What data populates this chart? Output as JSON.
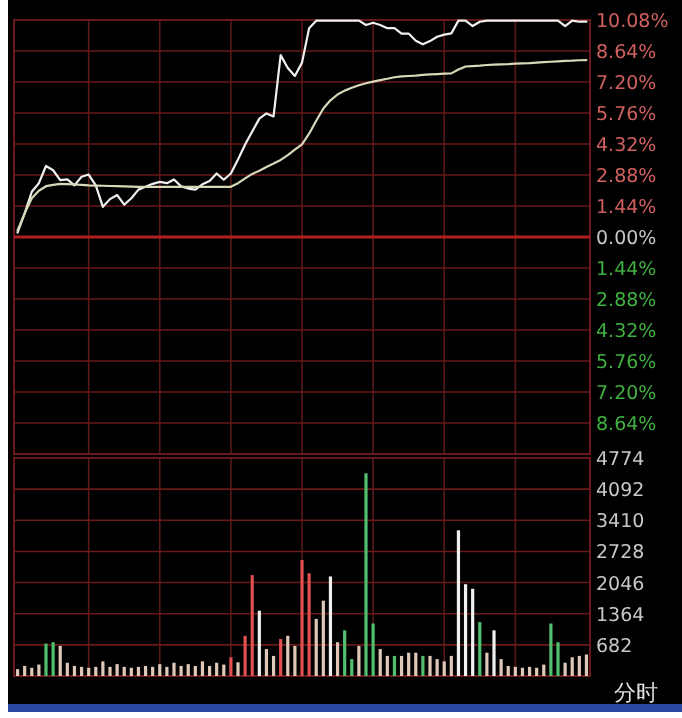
{
  "chart_data": [
    {
      "type": "line",
      "categories": [
        null,
        null,
        null,
        null,
        null,
        null,
        null,
        null,
        null,
        null,
        null,
        null,
        null,
        null,
        null,
        null,
        null,
        null,
        null,
        null,
        null,
        null,
        null,
        null,
        null,
        null,
        null,
        null,
        null,
        null,
        null,
        null,
        null,
        null,
        null,
        null,
        null,
        null,
        null,
        null,
        null,
        null,
        null,
        null,
        null,
        null,
        null,
        null,
        null,
        null,
        null,
        null,
        null,
        null,
        null,
        null,
        null,
        null,
        null,
        null,
        null,
        null,
        null,
        null,
        null,
        null,
        null,
        null,
        null,
        null,
        null,
        null,
        null,
        null,
        null,
        null,
        null,
        null,
        null,
        null,
        null
      ],
      "series": [
        {
          "color": "#f0f0f0",
          "values": [
            0.2,
            1.1,
            2.1,
            2.5,
            3.3,
            3.1,
            2.64,
            2.68,
            2.4,
            2.8,
            2.9,
            2.4,
            1.4,
            1.76,
            1.95,
            1.5,
            1.8,
            2.2,
            2.33,
            2.47,
            2.56,
            2.5,
            2.67,
            2.35,
            2.25,
            2.2,
            2.45,
            2.6,
            2.95,
            2.66,
            2.95,
            3.6,
            4.3,
            4.9,
            5.5,
            5.74,
            5.6,
            8.45,
            7.85,
            7.48,
            8.1,
            9.7,
            10.05,
            10.05,
            10.05,
            10.05,
            10.05,
            10.05,
            10.05,
            9.85,
            9.95,
            9.85,
            9.7,
            9.7,
            9.45,
            9.45,
            9.12,
            8.95,
            9.1,
            9.3,
            9.4,
            9.46,
            10.05,
            10.05,
            9.8,
            10.0,
            10.05,
            10.05,
            10.05,
            10.05,
            10.05,
            10.05,
            10.05,
            10.05,
            10.05,
            10.05,
            10.05,
            9.8,
            10.05,
            10.0,
            10.0
          ]
        },
        {
          "color": "#d8d8b8",
          "values": [
            0.3,
            1.1,
            1.8,
            2.15,
            2.36,
            2.42,
            2.47,
            2.46,
            2.44,
            2.42,
            2.4,
            2.39,
            2.38,
            2.37,
            2.36,
            2.35,
            2.34,
            2.33,
            2.33,
            2.33,
            2.33,
            2.33,
            2.33,
            2.33,
            2.33,
            2.33,
            2.33,
            2.33,
            2.33,
            2.33,
            2.33,
            2.5,
            2.72,
            2.93,
            3.08,
            3.25,
            3.41,
            3.58,
            3.8,
            4.06,
            4.3,
            4.8,
            5.4,
            5.97,
            6.35,
            6.62,
            6.8,
            6.93,
            7.05,
            7.14,
            7.22,
            7.29,
            7.35,
            7.42,
            7.46,
            7.48,
            7.5,
            7.53,
            7.55,
            7.57,
            7.59,
            7.6,
            7.78,
            7.92,
            7.94,
            7.96,
            7.99,
            8.01,
            8.02,
            8.03,
            8.05,
            8.07,
            8.08,
            8.1,
            8.12,
            8.14,
            8.16,
            8.18,
            8.19,
            8.21,
            8.22
          ]
        }
      ],
      "ylim": [
        -10.08,
        10.08
      ],
      "yticks": [
        {
          "value": 10.08,
          "label": "10.08%"
        },
        {
          "value": 8.64,
          "label": "8.64%"
        },
        {
          "value": 7.2,
          "label": "7.20%"
        },
        {
          "value": 5.76,
          "label": "5.76%"
        },
        {
          "value": 4.32,
          "label": "4.32%"
        },
        {
          "value": 2.88,
          "label": "2.88%"
        },
        {
          "value": 1.44,
          "label": "1.44%"
        },
        {
          "value": 0,
          "label": "0.00%"
        },
        {
          "value": -1.44,
          "label": "1.44%"
        },
        {
          "value": -2.88,
          "label": "2.88%"
        },
        {
          "value": -4.32,
          "label": "4.32%"
        },
        {
          "value": -5.76,
          "label": "5.76%"
        },
        {
          "value": -7.2,
          "label": "7.20%"
        },
        {
          "value": -8.64,
          "label": "8.64%"
        }
      ],
      "grid": true,
      "ref_lines": [
        {
          "axis": "y",
          "value": 0,
          "color": "#b02020"
        }
      ]
    },
    {
      "type": "bar",
      "categories": [
        null,
        null,
        null,
        null,
        null,
        null,
        null,
        null,
        null,
        null,
        null,
        null,
        null,
        null,
        null,
        null,
        null,
        null,
        null,
        null,
        null,
        null,
        null,
        null,
        null,
        null,
        null,
        null,
        null,
        null,
        null,
        null,
        null,
        null,
        null,
        null,
        null,
        null,
        null,
        null,
        null,
        null,
        null,
        null,
        null,
        null,
        null,
        null,
        null,
        null,
        null,
        null,
        null,
        null,
        null,
        null,
        null,
        null,
        null,
        null,
        null,
        null,
        null,
        null,
        null,
        null,
        null,
        null,
        null,
        null,
        null,
        null,
        null,
        null,
        null,
        null,
        null,
        null,
        null,
        null,
        null
      ],
      "values": [
        150,
        220,
        180,
        250,
        710,
        740,
        660,
        290,
        220,
        200,
        180,
        200,
        320,
        200,
        260,
        200,
        180,
        200,
        220,
        200,
        260,
        200,
        290,
        220,
        260,
        220,
        320,
        220,
        290,
        250,
        410,
        300,
        880,
        2210,
        1430,
        590,
        440,
        810,
        880,
        660,
        2540,
        2250,
        1250,
        1650,
        2180,
        740,
        1000,
        370,
        660,
        4440,
        1150,
        590,
        440,
        440,
        440,
        510,
        510,
        440,
        440,
        370,
        320,
        440,
        3190,
        2010,
        1910,
        1180,
        510,
        1000,
        370,
        220,
        200,
        180,
        200,
        180,
        250,
        1150,
        740,
        290,
        410,
        440,
        470
      ],
      "colors": [
        "#e0c8b8",
        "#e0c8b8",
        "#e0c8b8",
        "#e0c8b8",
        "#50c070",
        "#50c070",
        "#e0c8b8",
        "#e0c8b8",
        "#e0c8b8",
        "#e0c8b8",
        "#e0c8b8",
        "#e0c8b8",
        "#e0c8b8",
        "#e0c8b8",
        "#e0c8b8",
        "#e0c8b8",
        "#e0c8b8",
        "#e0c8b8",
        "#e0c8b8",
        "#e0c8b8",
        "#e0c8b8",
        "#e0c8b8",
        "#e0c8b8",
        "#e0c8b8",
        "#e0c8b8",
        "#e0c8b8",
        "#e0c8b8",
        "#e0c8b8",
        "#e0c8b8",
        "#e0c8b8",
        "#e05050",
        "#e0c8b8",
        "#e05050",
        "#e05050",
        "#f0f0f0",
        "#e0c8b8",
        "#e0c8b8",
        "#e05050",
        "#e0c8b8",
        "#e0c8b8",
        "#e05050",
        "#e05050",
        "#e0c8b8",
        "#e0c8b8",
        "#f0f0f0",
        "#e0c8b8",
        "#50c070",
        "#50c070",
        "#e0c8b8",
        "#50c070",
        "#50c070",
        "#e0c8b8",
        "#e0c8b8",
        "#50c070",
        "#e0c8b8",
        "#e0c8b8",
        "#e0c8b8",
        "#50c070",
        "#e0c8b8",
        "#e0c8b8",
        "#e0c8b8",
        "#e0c8b8",
        "#f0f0f0",
        "#f0f0f0",
        "#f0f0f0",
        "#50c070",
        "#e0c8b8",
        "#f0f0f0",
        "#e0c8b8",
        "#e0c8b8",
        "#e0c8b8",
        "#e0c8b8",
        "#e0c8b8",
        "#e0c8b8",
        "#e0c8b8",
        "#50c070",
        "#50c070",
        "#e0c8b8",
        "#e0c8b8",
        "#e0c8b8",
        "#e0c8b8"
      ],
      "ylim": [
        0,
        4774
      ],
      "yticks": [
        4774,
        4092,
        3410,
        2728,
        2046,
        1364,
        682
      ],
      "grid": true,
      "annotations": [
        "分时"
      ]
    }
  ]
}
